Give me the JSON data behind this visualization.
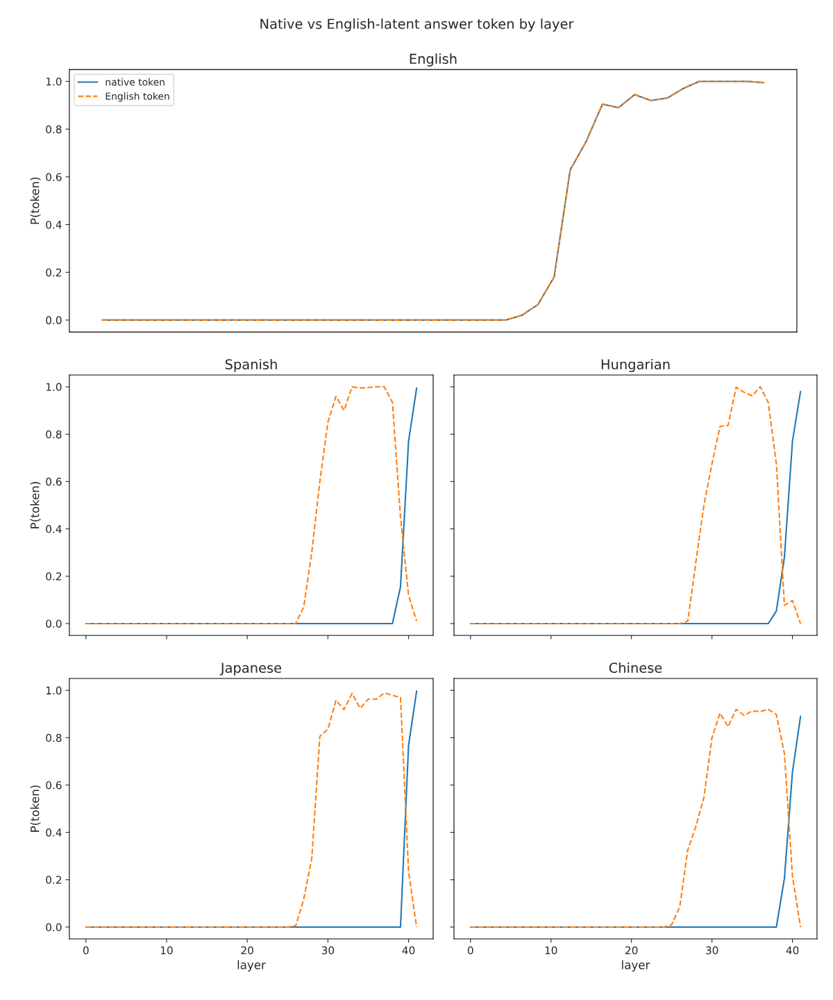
{
  "chart_data": [
    {
      "type": "line",
      "title": "English",
      "annotations": [
        "Native vs English-latent answer token by layer"
      ],
      "ylabel": "P(token)",
      "categories": [
        null,
        null,
        null,
        null,
        null,
        null,
        null,
        null,
        null,
        null,
        null,
        null,
        null,
        null,
        null,
        null,
        null,
        null,
        null,
        null,
        null,
        null,
        null,
        null,
        null,
        null,
        null,
        null,
        null,
        null,
        null,
        null,
        null,
        null,
        null,
        null,
        null,
        null,
        null,
        null,
        null,
        null
      ],
      "ylim": [
        -0.05,
        1.05
      ],
      "yticks": [
        {
          "value": 0,
          "label": "0.0"
        },
        {
          "value": 0.2,
          "label": "0.2"
        },
        {
          "value": 0.4,
          "label": "0.4"
        },
        {
          "value": 0.6,
          "label": "0.6"
        },
        {
          "value": 0.8,
          "label": "0.8"
        },
        {
          "value": 1,
          "label": "1.0"
        }
      ],
      "tick_labels": "y",
      "grid": false,
      "legend": "top left",
      "series": [
        {
          "name": "native token",
          "color": "#1f77b4",
          "line_style": "solid",
          "values": [
            0,
            0,
            0,
            0,
            0,
            0,
            0,
            0,
            0,
            0,
            0,
            0,
            0,
            0,
            0,
            0,
            0,
            0,
            0,
            0,
            0,
            0,
            0,
            0,
            0,
            0,
            0.02,
            0.065,
            0.18,
            0.63,
            0.75,
            0.905,
            0.89,
            0.945,
            0.92,
            0.93,
            0.97,
            1.0,
            1.0,
            1.0,
            1.0,
            0.995
          ]
        },
        {
          "name": "English token",
          "color": "#ff7f0e",
          "line_style": "dashed",
          "values": [
            0,
            0,
            0,
            0,
            0,
            0,
            0,
            0,
            0,
            0,
            0,
            0,
            0,
            0,
            0,
            0,
            0,
            0,
            0,
            0,
            0,
            0,
            0,
            0,
            0,
            0,
            0.02,
            0.065,
            0.18,
            0.63,
            0.75,
            0.905,
            0.89,
            0.945,
            0.92,
            0.93,
            0.97,
            1.0,
            1.0,
            1.0,
            1.0,
            0.995
          ]
        }
      ]
    },
    {
      "type": "line",
      "title": "Spanish",
      "ylabel": "P(token)",
      "x": [
        0,
        1,
        2,
        3,
        4,
        5,
        6,
        7,
        8,
        9,
        10,
        11,
        12,
        13,
        14,
        15,
        16,
        17,
        18,
        19,
        20,
        21,
        22,
        23,
        24,
        25,
        26,
        27,
        28,
        29,
        30,
        31,
        32,
        33,
        34,
        35,
        36,
        37,
        38,
        39,
        40,
        41
      ],
      "xlim": [
        -2.05,
        43.05
      ],
      "xticks": [
        0,
        10,
        20,
        30,
        40
      ],
      "ylim": [
        -0.05,
        1.05
      ],
      "yticks": [
        {
          "value": 0,
          "label": "0.0"
        },
        {
          "value": 0.2,
          "label": "0.2"
        },
        {
          "value": 0.4,
          "label": "0.4"
        },
        {
          "value": 0.6,
          "label": "0.6"
        },
        {
          "value": 0.8,
          "label": "0.8"
        },
        {
          "value": 1,
          "label": "1.0"
        }
      ],
      "tick_labels": "y",
      "grid": false,
      "series": [
        {
          "color": "#1f77b4",
          "line_style": "solid",
          "values": [
            0,
            0,
            0,
            0,
            0,
            0,
            0,
            0,
            0,
            0,
            0,
            0,
            0,
            0,
            0,
            0,
            0,
            0,
            0,
            0,
            0,
            0,
            0,
            0,
            0,
            0,
            0,
            0,
            0,
            0,
            0,
            0,
            0,
            0,
            0,
            0,
            0,
            0,
            0,
            0.155,
            0.77,
            0.995
          ]
        },
        {
          "color": "#ff7f0e",
          "line_style": "dashed",
          "values": [
            0,
            0,
            0,
            0,
            0,
            0,
            0,
            0,
            0,
            0,
            0,
            0,
            0,
            0,
            0,
            0,
            0,
            0,
            0,
            0,
            0,
            0,
            0,
            0,
            0,
            0,
            0,
            0.07,
            0.3,
            0.6,
            0.85,
            0.96,
            0.9,
            1.0,
            0.995,
            0.997,
            1.0,
            1.0,
            0.935,
            0.45,
            0.12,
            0.01
          ]
        }
      ]
    },
    {
      "type": "line",
      "title": "Hungarian",
      "x": [
        0,
        1,
        2,
        3,
        4,
        5,
        6,
        7,
        8,
        9,
        10,
        11,
        12,
        13,
        14,
        15,
        16,
        17,
        18,
        19,
        20,
        21,
        22,
        23,
        24,
        25,
        26,
        27,
        28,
        29,
        30,
        31,
        32,
        33,
        34,
        35,
        36,
        37,
        38,
        39,
        40,
        41
      ],
      "xlim": [
        -2.05,
        43.05
      ],
      "xticks": [
        0,
        10,
        20,
        30,
        40
      ],
      "ylim": [
        -0.05,
        1.05
      ],
      "yticks": [
        {
          "value": 0,
          "label": null
        },
        {
          "value": 0.2,
          "label": null
        },
        {
          "value": 0.4,
          "label": null
        },
        {
          "value": 0.6,
          "label": null
        },
        {
          "value": 0.8,
          "label": null
        },
        {
          "value": 1,
          "label": null
        }
      ],
      "tick_labels": false,
      "grid": false,
      "series": [
        {
          "color": "#1f77b4",
          "line_style": "solid",
          "values": [
            0,
            0,
            0,
            0,
            0,
            0,
            0,
            0,
            0,
            0,
            0,
            0,
            0,
            0,
            0,
            0,
            0,
            0,
            0,
            0,
            0,
            0,
            0,
            0,
            0,
            0,
            0,
            0,
            0,
            0,
            0,
            0,
            0,
            0,
            0,
            0,
            0,
            0,
            0.053,
            0.28,
            0.77,
            0.98
          ]
        },
        {
          "color": "#ff7f0e",
          "line_style": "dashed",
          "values": [
            0,
            0,
            0,
            0,
            0,
            0,
            0,
            0,
            0,
            0,
            0,
            0,
            0,
            0,
            0,
            0,
            0,
            0,
            0,
            0,
            0,
            0,
            0,
            0,
            0,
            0,
            0,
            0.01,
            0.26,
            0.5,
            0.675,
            0.833,
            0.837,
            0.998,
            0.977,
            0.962,
            1.0,
            0.933,
            0.675,
            0.077,
            0.097,
            0
          ]
        }
      ]
    },
    {
      "type": "line",
      "title": "Japanese",
      "xlabel": "layer",
      "ylabel": "P(token)",
      "x": [
        0,
        1,
        2,
        3,
        4,
        5,
        6,
        7,
        8,
        9,
        10,
        11,
        12,
        13,
        14,
        15,
        16,
        17,
        18,
        19,
        20,
        21,
        22,
        23,
        24,
        25,
        26,
        27,
        28,
        29,
        30,
        31,
        32,
        33,
        34,
        35,
        36,
        37,
        38,
        39,
        40,
        41
      ],
      "xlim": [
        -2.05,
        43.05
      ],
      "xticks": [
        0,
        10,
        20,
        30,
        40
      ],
      "ylim": [
        -0.05,
        1.05
      ],
      "yticks": [
        {
          "value": 0,
          "label": "0.0"
        },
        {
          "value": 0.2,
          "label": "0.2"
        },
        {
          "value": 0.4,
          "label": "0.4"
        },
        {
          "value": 0.6,
          "label": "0.6"
        },
        {
          "value": 0.8,
          "label": "0.8"
        },
        {
          "value": 1,
          "label": "1.0"
        }
      ],
      "grid": false,
      "series": [
        {
          "color": "#1f77b4",
          "line_style": "solid",
          "values": [
            0,
            0,
            0,
            0,
            0,
            0,
            0,
            0,
            0,
            0,
            0,
            0,
            0,
            0,
            0,
            0,
            0,
            0,
            0,
            0,
            0,
            0,
            0,
            0,
            0,
            0,
            0,
            0,
            0,
            0,
            0,
            0,
            0,
            0,
            0,
            0,
            0,
            0,
            0,
            0,
            0.767,
            0.997
          ]
        },
        {
          "color": "#ff7f0e",
          "line_style": "dashed",
          "values": [
            0,
            0,
            0,
            0,
            0,
            0,
            0,
            0,
            0,
            0,
            0,
            0,
            0,
            0,
            0,
            0,
            0,
            0,
            0,
            0,
            0,
            0,
            0,
            0,
            0,
            0,
            0.005,
            0.117,
            0.29,
            0.806,
            0.836,
            0.958,
            0.919,
            0.987,
            0.924,
            0.963,
            0.963,
            0.989,
            0.979,
            0.97,
            0.235,
            0
          ]
        }
      ]
    },
    {
      "type": "line",
      "title": "Chinese",
      "xlabel": "layer",
      "x": [
        0,
        1,
        2,
        3,
        4,
        5,
        6,
        7,
        8,
        9,
        10,
        11,
        12,
        13,
        14,
        15,
        16,
        17,
        18,
        19,
        20,
        21,
        22,
        23,
        24,
        25,
        26,
        27,
        28,
        29,
        30,
        31,
        32,
        33,
        34,
        35,
        36,
        37,
        38,
        39,
        40,
        41
      ],
      "xlim": [
        -2.05,
        43.05
      ],
      "xticks": [
        0,
        10,
        20,
        30,
        40
      ],
      "ylim": [
        -0.05,
        1.05
      ],
      "yticks": [
        {
          "value": 0,
          "label": null
        },
        {
          "value": 0.2,
          "label": null
        },
        {
          "value": 0.4,
          "label": null
        },
        {
          "value": 0.6,
          "label": null
        },
        {
          "value": 0.8,
          "label": null
        },
        {
          "value": 1,
          "label": null
        }
      ],
      "tick_labels": "x",
      "grid": false,
      "series": [
        {
          "color": "#1f77b4",
          "line_style": "solid",
          "values": [
            0,
            0,
            0,
            0,
            0,
            0,
            0,
            0,
            0,
            0,
            0,
            0,
            0,
            0,
            0,
            0,
            0,
            0,
            0,
            0,
            0,
            0,
            0,
            0,
            0,
            0,
            0,
            0,
            0,
            0,
            0,
            0,
            0,
            0,
            0,
            0,
            0,
            0,
            0,
            0.205,
            0.655,
            0.89
          ]
        },
        {
          "color": "#ff7f0e",
          "line_style": "dashed",
          "values": [
            0,
            0,
            0,
            0,
            0,
            0,
            0,
            0,
            0,
            0,
            0,
            0,
            0,
            0,
            0,
            0,
            0,
            0,
            0,
            0,
            0,
            0,
            0,
            0,
            0,
            0.01,
            0.086,
            0.327,
            0.425,
            0.548,
            0.8,
            0.904,
            0.846,
            0.92,
            0.894,
            0.913,
            0.91,
            0.92,
            0.898,
            0.733,
            0.215,
            0
          ]
        }
      ]
    }
  ]
}
